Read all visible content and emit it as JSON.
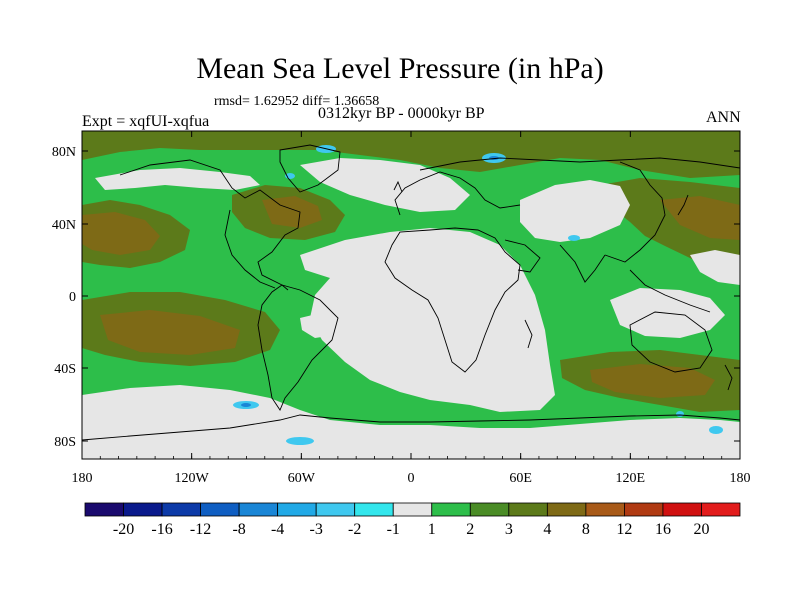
{
  "header": {
    "title": "Mean Sea Level Pressure (in hPa)",
    "stats": "rmsd= 1.62952 diff= 1.36658",
    "subtitle": "0312kyr BP - 0000kyr BP",
    "experiment": "Expt = xqfUI-xqfua",
    "season": "ANN"
  },
  "axes": {
    "lat_labels": [
      "80N",
      "40N",
      "0",
      "40S",
      "80S"
    ],
    "lon_labels": [
      "180",
      "120W",
      "60W",
      "0",
      "60E",
      "120E",
      "180"
    ]
  },
  "colorbar": {
    "labels": [
      "-20",
      "-16",
      "-12",
      "-8",
      "-4",
      "-3",
      "-2",
      "-1",
      "1",
      "2",
      "3",
      "4",
      "8",
      "12",
      "16",
      "20"
    ],
    "colors": [
      "#1a0a6e",
      "#0a1a8c",
      "#0c3aa8",
      "#0f5ec2",
      "#1a86d6",
      "#21a9e6",
      "#3fc8ef",
      "#33e6ec",
      "#e6e6e6",
      "#2dbe4a",
      "#4a8c26",
      "#5c7a1a",
      "#7e6a16",
      "#a85a18",
      "#b03a12",
      "#d01010",
      "#e21c1c"
    ]
  },
  "palette": {
    "zero": "#e6e6e6",
    "pos1": "#2dbe4a",
    "pos2": "#4a8c26",
    "pos3": "#5c7a1a",
    "pos4": "#7e6a16",
    "neg": "#3fc8ef",
    "coast": "#000000"
  }
}
